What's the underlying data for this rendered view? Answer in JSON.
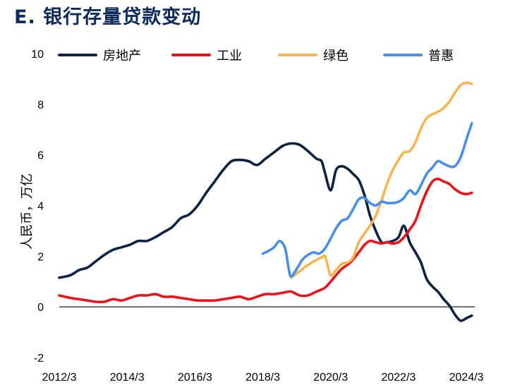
{
  "header": {
    "title": "E. 银行存量贷款变动"
  },
  "chart_data": {
    "type": "line",
    "title": "E. 银行存量贷款变动",
    "ylabel": "人民币，万亿",
    "xlabel": "",
    "ylim": [
      -2,
      10
    ],
    "yticks": [
      -2,
      0,
      2,
      4,
      6,
      8,
      10
    ],
    "xlim": [
      2012.17,
      2024.42
    ],
    "xticks": [
      {
        "value": 2012.17,
        "label": "2012/3"
      },
      {
        "value": 2014.17,
        "label": "2014/3"
      },
      {
        "value": 2016.17,
        "label": "2016/3"
      },
      {
        "value": 2018.17,
        "label": "2018/3"
      },
      {
        "value": 2020.17,
        "label": "2020/3"
      },
      {
        "value": 2022.17,
        "label": "2022/3"
      },
      {
        "value": 2024.17,
        "label": "2024/3"
      }
    ],
    "legend_position": "top",
    "zero_line": true,
    "series": [
      {
        "name": "房地产",
        "color": "#0d2341",
        "x": [
          2012.17,
          2012.5,
          2012.75,
          2013.0,
          2013.25,
          2013.5,
          2013.75,
          2014.0,
          2014.25,
          2014.5,
          2014.75,
          2015.0,
          2015.25,
          2015.5,
          2015.75,
          2016.0,
          2016.25,
          2016.5,
          2016.75,
          2017.0,
          2017.25,
          2017.5,
          2017.75,
          2018.0,
          2018.25,
          2018.5,
          2018.75,
          2019.0,
          2019.25,
          2019.5,
          2019.75,
          2019.9,
          2020.0,
          2020.17,
          2020.33,
          2020.5,
          2020.67,
          2020.83,
          2021.0,
          2021.17,
          2021.33,
          2021.5,
          2021.67,
          2021.83,
          2022.0,
          2022.17,
          2022.33,
          2022.5,
          2022.67,
          2022.83,
          2023.0,
          2023.17,
          2023.33,
          2023.5,
          2023.67,
          2023.83,
          2024.0,
          2024.17,
          2024.25,
          2024.33
        ],
        "y": [
          1.15,
          1.25,
          1.45,
          1.55,
          1.8,
          2.05,
          2.25,
          2.35,
          2.45,
          2.6,
          2.6,
          2.75,
          2.95,
          3.15,
          3.5,
          3.65,
          4.0,
          4.5,
          4.95,
          5.4,
          5.75,
          5.8,
          5.75,
          5.6,
          5.85,
          6.1,
          6.35,
          6.45,
          6.4,
          6.15,
          5.85,
          5.75,
          5.3,
          4.6,
          5.4,
          5.55,
          5.45,
          5.25,
          5.0,
          4.4,
          3.6,
          3.0,
          2.55,
          2.55,
          2.6,
          2.75,
          3.2,
          2.55,
          2.15,
          1.75,
          1.1,
          0.8,
          0.6,
          0.3,
          0.05,
          -0.3,
          -0.55,
          -0.45,
          -0.4,
          -0.35
        ]
      },
      {
        "name": "工业",
        "color": "#e8141c",
        "x": [
          2012.17,
          2012.5,
          2012.75,
          2013.0,
          2013.25,
          2013.5,
          2013.75,
          2014.0,
          2014.25,
          2014.5,
          2014.75,
          2015.0,
          2015.25,
          2015.5,
          2015.75,
          2016.0,
          2016.25,
          2016.5,
          2016.75,
          2017.0,
          2017.25,
          2017.5,
          2017.75,
          2018.0,
          2018.25,
          2018.5,
          2018.75,
          2019.0,
          2019.25,
          2019.5,
          2019.75,
          2020.0,
          2020.17,
          2020.33,
          2020.5,
          2020.75,
          2021.0,
          2021.17,
          2021.33,
          2021.5,
          2021.67,
          2021.83,
          2022.0,
          2022.17,
          2022.33,
          2022.5,
          2022.67,
          2022.83,
          2023.0,
          2023.17,
          2023.33,
          2023.5,
          2023.67,
          2023.83,
          2024.0,
          2024.17,
          2024.33
        ],
        "y": [
          0.45,
          0.35,
          0.3,
          0.25,
          0.2,
          0.2,
          0.3,
          0.25,
          0.35,
          0.45,
          0.45,
          0.5,
          0.4,
          0.4,
          0.35,
          0.3,
          0.25,
          0.25,
          0.25,
          0.3,
          0.35,
          0.4,
          0.3,
          0.4,
          0.5,
          0.5,
          0.55,
          0.6,
          0.45,
          0.45,
          0.6,
          0.75,
          1.0,
          1.25,
          1.5,
          1.75,
          2.15,
          2.45,
          2.6,
          2.55,
          2.5,
          2.55,
          2.5,
          2.55,
          2.75,
          3.05,
          3.4,
          4.0,
          4.55,
          4.95,
          5.05,
          4.95,
          4.85,
          4.65,
          4.5,
          4.45,
          4.5
        ]
      },
      {
        "name": "绿色",
        "color": "#f5b550",
        "x": [
          2019.0,
          2019.25,
          2019.5,
          2019.75,
          2019.9,
          2020.0,
          2020.08,
          2020.17,
          2020.33,
          2020.5,
          2020.67,
          2020.83,
          2021.0,
          2021.17,
          2021.33,
          2021.5,
          2021.67,
          2021.83,
          2022.0,
          2022.17,
          2022.33,
          2022.5,
          2022.67,
          2022.83,
          2023.0,
          2023.17,
          2023.33,
          2023.5,
          2023.67,
          2023.83,
          2024.0,
          2024.17,
          2024.33
        ],
        "y": [
          1.15,
          1.4,
          1.65,
          1.85,
          1.95,
          2.0,
          1.65,
          1.25,
          1.45,
          1.7,
          1.75,
          1.95,
          2.55,
          2.9,
          3.2,
          3.6,
          4.2,
          4.85,
          5.4,
          5.8,
          6.1,
          6.15,
          6.5,
          7.05,
          7.45,
          7.6,
          7.7,
          7.85,
          8.1,
          8.45,
          8.75,
          8.85,
          8.8
        ]
      },
      {
        "name": "普惠",
        "color": "#4a8fe6",
        "x": [
          2018.17,
          2018.33,
          2018.5,
          2018.67,
          2018.83,
          2018.92,
          2019.0,
          2019.17,
          2019.33,
          2019.5,
          2019.67,
          2019.83,
          2020.0,
          2020.17,
          2020.33,
          2020.5,
          2020.67,
          2020.83,
          2021.0,
          2021.17,
          2021.33,
          2021.5,
          2021.67,
          2021.83,
          2022.0,
          2022.17,
          2022.33,
          2022.5,
          2022.67,
          2022.83,
          2023.0,
          2023.17,
          2023.33,
          2023.5,
          2023.67,
          2023.83,
          2024.0,
          2024.17,
          2024.33
        ],
        "y": [
          2.1,
          2.2,
          2.35,
          2.6,
          2.3,
          1.6,
          1.2,
          1.5,
          1.85,
          2.05,
          2.15,
          2.1,
          2.3,
          2.7,
          3.1,
          3.4,
          3.5,
          3.85,
          4.25,
          4.3,
          4.1,
          4.0,
          4.15,
          4.1,
          4.1,
          4.15,
          4.3,
          4.6,
          4.45,
          4.8,
          5.25,
          5.5,
          5.75,
          5.65,
          5.55,
          5.55,
          5.9,
          6.6,
          7.25
        ]
      }
    ]
  }
}
